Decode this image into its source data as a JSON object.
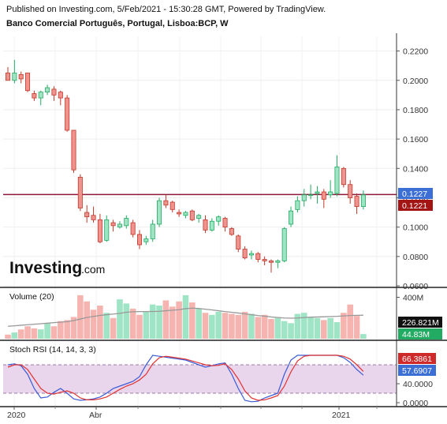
{
  "header": {
    "line1": "Published on Investing.com, 5/Feb/2021 - 15:30:28 GMT, Powered by TradingView.",
    "line2": "Banco Comercial Português, Portugal, Lisboa:BCP, W"
  },
  "logo": {
    "brand": "Investing",
    "suffix": ".com"
  },
  "chart_data": [
    {
      "type": "candlestick",
      "title": "Banco Comercial Português, Portugal, Lisboa:BCP, W",
      "ylim": [
        0.06,
        0.23
      ],
      "y_ticks": [
        "0.2200",
        "0.2000",
        "0.1800",
        "0.1600",
        "0.1400",
        "0.1200",
        "0.1000",
        "0.0800",
        "0.0600"
      ],
      "x_ticks": [
        "2020",
        "Abr",
        "2021"
      ],
      "colors": {
        "up": "#9fe4c4",
        "down": "#f0928e",
        "up_border": "#22ab62",
        "down_border": "#c0392b"
      },
      "horizontal_line": {
        "value": 0.1222,
        "color": "#8b1a3a"
      },
      "price_tags": [
        {
          "value": "0.1227",
          "color": "#3b6fd6"
        },
        {
          "value": "0.1221",
          "color": "#a31414"
        }
      ],
      "candles": [
        {
          "o": 0.205,
          "h": 0.209,
          "l": 0.2,
          "c": 0.2
        },
        {
          "o": 0.2,
          "h": 0.214,
          "l": 0.198,
          "c": 0.205
        },
        {
          "o": 0.204,
          "h": 0.206,
          "l": 0.198,
          "c": 0.201
        },
        {
          "o": 0.205,
          "h": 0.205,
          "l": 0.192,
          "c": 0.193
        },
        {
          "o": 0.191,
          "h": 0.193,
          "l": 0.186,
          "c": 0.188
        },
        {
          "o": 0.188,
          "h": 0.193,
          "l": 0.183,
          "c": 0.192
        },
        {
          "o": 0.192,
          "h": 0.197,
          "l": 0.19,
          "c": 0.195
        },
        {
          "o": 0.194,
          "h": 0.196,
          "l": 0.186,
          "c": 0.19
        },
        {
          "o": 0.192,
          "h": 0.193,
          "l": 0.183,
          "c": 0.188
        },
        {
          "o": 0.188,
          "h": 0.19,
          "l": 0.165,
          "c": 0.166
        },
        {
          "o": 0.166,
          "h": 0.166,
          "l": 0.137,
          "c": 0.139
        },
        {
          "o": 0.134,
          "h": 0.136,
          "l": 0.111,
          "c": 0.113
        },
        {
          "o": 0.11,
          "h": 0.115,
          "l": 0.103,
          "c": 0.107
        },
        {
          "o": 0.108,
          "h": 0.114,
          "l": 0.103,
          "c": 0.105
        },
        {
          "o": 0.105,
          "h": 0.109,
          "l": 0.089,
          "c": 0.09
        },
        {
          "o": 0.091,
          "h": 0.108,
          "l": 0.09,
          "c": 0.105
        },
        {
          "o": 0.103,
          "h": 0.105,
          "l": 0.097,
          "c": 0.101
        },
        {
          "o": 0.1,
          "h": 0.104,
          "l": 0.099,
          "c": 0.102
        },
        {
          "o": 0.101,
          "h": 0.108,
          "l": 0.099,
          "c": 0.106
        },
        {
          "o": 0.103,
          "h": 0.105,
          "l": 0.093,
          "c": 0.095
        },
        {
          "o": 0.095,
          "h": 0.098,
          "l": 0.085,
          "c": 0.088
        },
        {
          "o": 0.09,
          "h": 0.094,
          "l": 0.088,
          "c": 0.092
        },
        {
          "o": 0.092,
          "h": 0.105,
          "l": 0.09,
          "c": 0.102
        },
        {
          "o": 0.102,
          "h": 0.12,
          "l": 0.1,
          "c": 0.118
        },
        {
          "o": 0.118,
          "h": 0.122,
          "l": 0.113,
          "c": 0.115
        },
        {
          "o": 0.117,
          "h": 0.118,
          "l": 0.11,
          "c": 0.112
        },
        {
          "o": 0.11,
          "h": 0.112,
          "l": 0.107,
          "c": 0.109
        },
        {
          "o": 0.108,
          "h": 0.111,
          "l": 0.106,
          "c": 0.11
        },
        {
          "o": 0.111,
          "h": 0.112,
          "l": 0.104,
          "c": 0.105
        },
        {
          "o": 0.106,
          "h": 0.109,
          "l": 0.103,
          "c": 0.108
        },
        {
          "o": 0.105,
          "h": 0.108,
          "l": 0.096,
          "c": 0.098
        },
        {
          "o": 0.098,
          "h": 0.106,
          "l": 0.097,
          "c": 0.104
        },
        {
          "o": 0.104,
          "h": 0.108,
          "l": 0.101,
          "c": 0.107
        },
        {
          "o": 0.106,
          "h": 0.107,
          "l": 0.097,
          "c": 0.1
        },
        {
          "o": 0.099,
          "h": 0.1,
          "l": 0.094,
          "c": 0.095
        },
        {
          "o": 0.094,
          "h": 0.095,
          "l": 0.083,
          "c": 0.085
        },
        {
          "o": 0.085,
          "h": 0.087,
          "l": 0.078,
          "c": 0.079
        },
        {
          "o": 0.081,
          "h": 0.084,
          "l": 0.078,
          "c": 0.082
        },
        {
          "o": 0.082,
          "h": 0.083,
          "l": 0.076,
          "c": 0.078
        },
        {
          "o": 0.078,
          "h": 0.08,
          "l": 0.074,
          "c": 0.077
        },
        {
          "o": 0.077,
          "h": 0.078,
          "l": 0.069,
          "c": 0.076
        },
        {
          "o": 0.076,
          "h": 0.078,
          "l": 0.072,
          "c": 0.077
        },
        {
          "o": 0.077,
          "h": 0.1,
          "l": 0.076,
          "c": 0.099
        },
        {
          "o": 0.102,
          "h": 0.114,
          "l": 0.1,
          "c": 0.111
        },
        {
          "o": 0.112,
          "h": 0.121,
          "l": 0.11,
          "c": 0.118
        },
        {
          "o": 0.118,
          "h": 0.126,
          "l": 0.114,
          "c": 0.122
        },
        {
          "o": 0.122,
          "h": 0.129,
          "l": 0.119,
          "c": 0.122
        },
        {
          "o": 0.123,
          "h": 0.128,
          "l": 0.116,
          "c": 0.124
        },
        {
          "o": 0.124,
          "h": 0.126,
          "l": 0.113,
          "c": 0.119
        },
        {
          "o": 0.122,
          "h": 0.132,
          "l": 0.12,
          "c": 0.124
        },
        {
          "o": 0.123,
          "h": 0.149,
          "l": 0.121,
          "c": 0.141
        },
        {
          "o": 0.14,
          "h": 0.141,
          "l": 0.127,
          "c": 0.129
        },
        {
          "o": 0.129,
          "h": 0.132,
          "l": 0.116,
          "c": 0.12
        },
        {
          "o": 0.121,
          "h": 0.123,
          "l": 0.109,
          "c": 0.114
        },
        {
          "o": 0.114,
          "h": 0.125,
          "l": 0.112,
          "c": 0.122
        }
      ]
    },
    {
      "type": "bar",
      "title": "Volume (20)",
      "y_ticks": [
        "400M"
      ],
      "ylim": [
        0,
        480
      ],
      "unit": "M",
      "tags": [
        {
          "value": "226.821M",
          "color": "#111111"
        },
        {
          "value": "44.83M",
          "color": "#22ab62"
        }
      ],
      "ma_color": "#999999",
      "values": [
        40,
        60,
        90,
        120,
        100,
        90,
        150,
        120,
        170,
        180,
        210,
        420,
        360,
        280,
        320,
        250,
        200,
        380,
        340,
        290,
        230,
        260,
        330,
        320,
        370,
        310,
        360,
        420,
        350,
        290,
        250,
        230,
        260,
        250,
        240,
        230,
        260,
        240,
        210,
        230,
        190,
        200,
        170,
        150,
        240,
        250,
        210,
        200,
        180,
        200,
        160,
        250,
        330,
        220,
        45
      ],
      "ma_values": [
        120,
        125,
        130,
        135,
        140,
        145,
        150,
        155,
        160,
        165,
        175,
        190,
        205,
        215,
        225,
        232,
        238,
        245,
        255,
        260,
        262,
        262,
        263,
        265,
        270,
        275,
        280,
        290,
        295,
        292,
        285,
        278,
        270,
        262,
        255,
        248,
        240,
        232,
        224,
        218,
        210,
        205,
        200,
        198,
        200,
        205,
        208,
        210,
        212,
        214,
        216,
        220,
        224,
        226,
        227
      ]
    },
    {
      "type": "line",
      "title": "Stoch RSI (14, 14, 3, 3)",
      "ylim": [
        0,
        100
      ],
      "y_ticks": [
        "40.0000",
        "0.0000"
      ],
      "band": [
        20,
        80
      ],
      "tags": [
        {
          "value": "66.3861",
          "color": "#cf2a2a"
        },
        {
          "value": "57.6907",
          "color": "#3b6fd6"
        }
      ],
      "series": [
        {
          "color": "#3b5bd6",
          "values": [
            80,
            82,
            78,
            60,
            30,
            10,
            12,
            22,
            30,
            20,
            8,
            5,
            6,
            8,
            12,
            20,
            30,
            35,
            40,
            45,
            55,
            80,
            100,
            98,
            96,
            94,
            92,
            90,
            85,
            80,
            75,
            78,
            82,
            84,
            60,
            30,
            5,
            2,
            3,
            10,
            15,
            20,
            60,
            90,
            100,
            100,
            100,
            100,
            100,
            100,
            100,
            95,
            85,
            70,
            58
          ]
        },
        {
          "color": "#e03333",
          "values": [
            75,
            80,
            80,
            70,
            50,
            30,
            20,
            18,
            22,
            25,
            20,
            10,
            6,
            6,
            8,
            12,
            20,
            28,
            35,
            40,
            48,
            60,
            82,
            95,
            98,
            96,
            94,
            92,
            88,
            84,
            80,
            78,
            79,
            82,
            70,
            50,
            25,
            10,
            5,
            6,
            10,
            15,
            35,
            65,
            88,
            98,
            100,
            100,
            100,
            100,
            100,
            98,
            92,
            80,
            66
          ]
        }
      ]
    }
  ]
}
